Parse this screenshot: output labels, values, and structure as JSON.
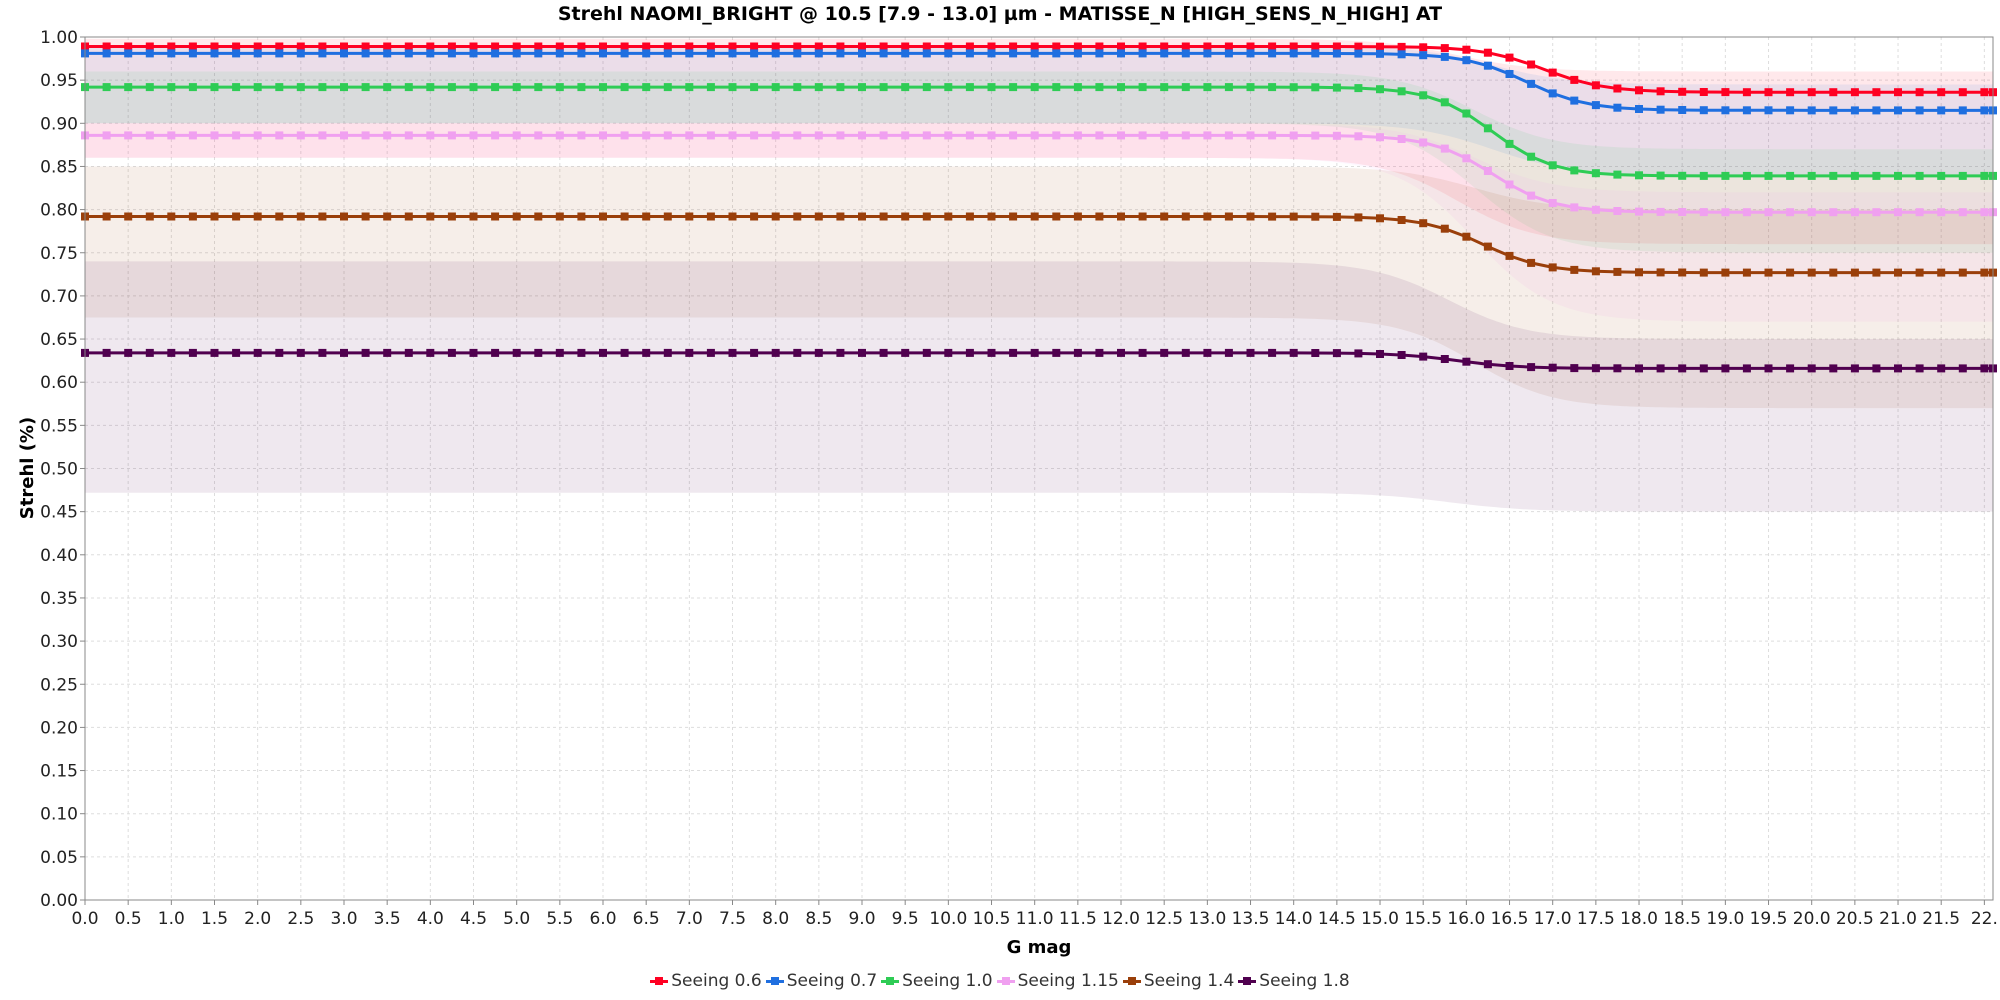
{
  "chart_data": {
    "type": "line",
    "title": "Strehl NAOMI_BRIGHT @ 10.5 [7.9 - 13.0] µm - MATISSE_N [HIGH_SENS_N_HIGH] AT",
    "xlabel": "G mag",
    "ylabel": "Strehl (%)",
    "xlim": [
      0,
      22.1
    ],
    "ylim": [
      0,
      1
    ],
    "x_ticks": [
      "0.0",
      "0.5",
      "1.0",
      "1.5",
      "2.0",
      "2.5",
      "3.0",
      "3.5",
      "4.0",
      "4.5",
      "5.0",
      "5.5",
      "6.0",
      "6.5",
      "7.0",
      "7.5",
      "8.0",
      "8.5",
      "9.0",
      "9.5",
      "10.0",
      "10.5",
      "11.0",
      "11.5",
      "12.0",
      "12.5",
      "13.0",
      "13.5",
      "14.0",
      "14.5",
      "15.0",
      "15.5",
      "16.0",
      "16.5",
      "17.0",
      "17.5",
      "18.0",
      "18.5",
      "19.0",
      "19.5",
      "20.0",
      "20.5",
      "21.0",
      "21.5",
      "22."
    ],
    "y_ticks": [
      "0.00",
      "0.05",
      "0.10",
      "0.15",
      "0.20",
      "0.25",
      "0.30",
      "0.35",
      "0.40",
      "0.45",
      "0.50",
      "0.55",
      "0.60",
      "0.65",
      "0.70",
      "0.75",
      "0.80",
      "0.85",
      "0.90",
      "0.95",
      "1.00"
    ],
    "grid": true,
    "legend_position": "bottom",
    "x_step": 0.25,
    "series": [
      {
        "name": "Seeing 0.6",
        "color": "#ff0022",
        "plateau": 0.989,
        "tail": 0.936,
        "center": 16.9,
        "width": 0.35,
        "band_top_plateau": 0.998,
        "band_top_tail": 0.96,
        "band_bottom_plateau": 0.86,
        "band_bottom_tail": 0.76,
        "band_center": 15.9,
        "band_width": 0.45
      },
      {
        "name": "Seeing 0.7",
        "color": "#1f6fe0",
        "plateau": 0.981,
        "tail": 0.915,
        "center": 16.7,
        "width": 0.35,
        "band_top_plateau": 0.99,
        "band_top_tail": 0.945,
        "band_bottom_plateau": 0.9,
        "band_bottom_tail": 0.84,
        "band_center": 16.3,
        "band_width": 0.45
      },
      {
        "name": "Seeing 1.0",
        "color": "#2ecc55",
        "plateau": 0.942,
        "tail": 0.839,
        "center": 16.3,
        "width": 0.35,
        "band_top_plateau": 0.96,
        "band_top_tail": 0.87,
        "band_bottom_plateau": 0.9,
        "band_bottom_tail": 0.75,
        "band_center": 16.1,
        "band_width": 0.45
      },
      {
        "name": "Seeing 1.15",
        "color": "#f0a0f0",
        "plateau": 0.886,
        "tail": 0.797,
        "center": 16.3,
        "width": 0.35,
        "band_top_plateau": 0.9,
        "band_top_tail": 0.82,
        "band_bottom_plateau": 0.86,
        "band_bottom_tail": 0.67,
        "band_center": 16.1,
        "band_width": 0.45
      },
      {
        "name": "Seeing 1.4",
        "color": "#9a3f0a",
        "plateau": 0.792,
        "tail": 0.727,
        "center": 16.2,
        "width": 0.35,
        "band_top_plateau": 0.85,
        "band_top_tail": 0.8,
        "band_bottom_plateau": 0.675,
        "band_bottom_tail": 0.57,
        "band_center": 16.1,
        "band_width": 0.45
      },
      {
        "name": "Seeing 1.8",
        "color": "#50004f",
        "plateau": 0.634,
        "tail": 0.616,
        "center": 15.9,
        "width": 0.35,
        "band_top_plateau": 0.74,
        "band_top_tail": 0.65,
        "band_bottom_plateau": 0.472,
        "band_bottom_tail": 0.45,
        "band_center": 15.8,
        "band_width": 0.45
      }
    ]
  }
}
